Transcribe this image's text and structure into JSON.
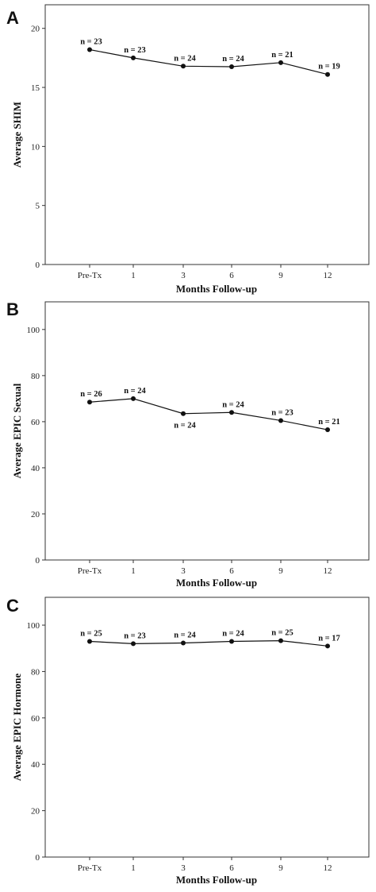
{
  "chart_data": [
    {
      "type": "line",
      "panel": "A",
      "categories": [
        "Pre-Tx",
        "1",
        "3",
        "6",
        "9",
        "12"
      ],
      "values": [
        18.2,
        17.5,
        16.8,
        16.75,
        17.1,
        16.1
      ],
      "point_labels": [
        "n = 23",
        "n = 23",
        "n = 24",
        "n = 24",
        "n = 21",
        "n = 19"
      ],
      "label_position": [
        "above",
        "above",
        "above",
        "above",
        "above",
        "above"
      ],
      "xlabel": "Months Follow-up",
      "ylabel": "Average SHIM",
      "ylim": [
        0,
        22
      ],
      "yticks": [
        0,
        5,
        10,
        15,
        20
      ],
      "grid": false
    },
    {
      "type": "line",
      "panel": "B",
      "categories": [
        "Pre-Tx",
        "1",
        "3",
        "6",
        "9",
        "12"
      ],
      "values": [
        68.5,
        70,
        63.5,
        64,
        60.5,
        56.5
      ],
      "point_labels": [
        "n = 26",
        "n = 24",
        "n = 24",
        "n = 24",
        "n = 23",
        "n = 21"
      ],
      "label_position": [
        "above",
        "above",
        "below",
        "above",
        "above",
        "above"
      ],
      "xlabel": "Months Follow-up",
      "ylabel": "Average EPIC Sexual",
      "ylim": [
        0,
        112
      ],
      "yticks": [
        0,
        20,
        40,
        60,
        80,
        100
      ],
      "grid": false
    },
    {
      "type": "line",
      "panel": "C",
      "categories": [
        "Pre-Tx",
        "1",
        "3",
        "6",
        "9",
        "12"
      ],
      "values": [
        93,
        92,
        92.3,
        93,
        93.3,
        91
      ],
      "point_labels": [
        "n = 25",
        "n = 23",
        "n = 24",
        "n = 24",
        "n = 25",
        "n = 17"
      ],
      "label_position": [
        "above",
        "above",
        "above",
        "above",
        "above",
        "above"
      ],
      "xlabel": "Months Follow-up",
      "ylabel": "Average EPIC Hormone",
      "ylim": [
        0,
        112
      ],
      "yticks": [
        0,
        20,
        40,
        60,
        80,
        100
      ],
      "grid": false
    }
  ]
}
